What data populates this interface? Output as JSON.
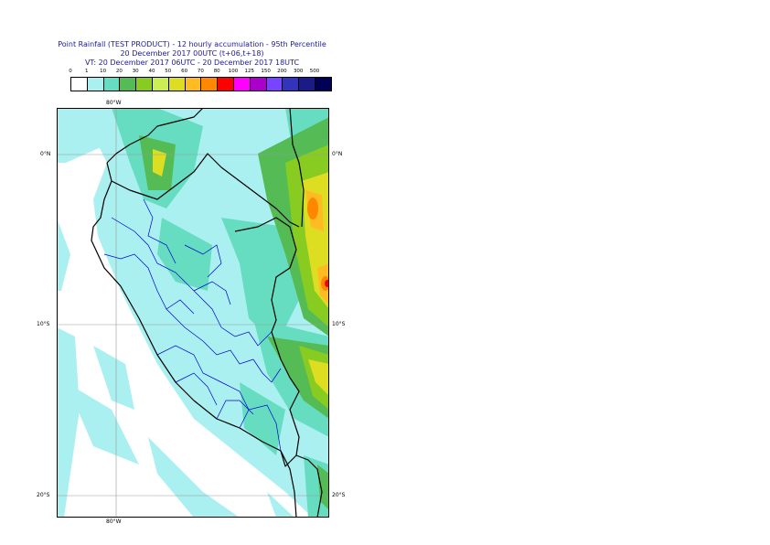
{
  "title": {
    "line1": "Point Rainfall (TEST PRODUCT) - 12 hourly accumulation - 95th Percentile",
    "line2": "20 December 2017 00UTC (t+06,t+18)",
    "line3": "VT: 20 December 2017 06UTC - 20 December 2017 18UTC"
  },
  "colorbar": {
    "labels": [
      "0",
      "1",
      "10",
      "20",
      "30",
      "40",
      "50",
      "60",
      "70",
      "80",
      "100",
      "125",
      "150",
      "200",
      "300",
      "500"
    ],
    "colors": [
      "#ffffff",
      "#aaf0f0",
      "#66ddc0",
      "#55bb55",
      "#88cc22",
      "#ccee55",
      "#dddd22",
      "#ffbb22",
      "#ff8800",
      "#ff0000",
      "#ff00ff",
      "#aa00cc",
      "#7744ff",
      "#3333bb",
      "#1a1a88",
      "#000055"
    ]
  },
  "axes": {
    "lon_top": "80°W",
    "lon_bottom": "80°W",
    "lat_left": [
      "0°N",
      "10°S",
      "20°S"
    ],
    "lat_right": [
      "0°N",
      "10°S",
      "20°S"
    ]
  }
}
